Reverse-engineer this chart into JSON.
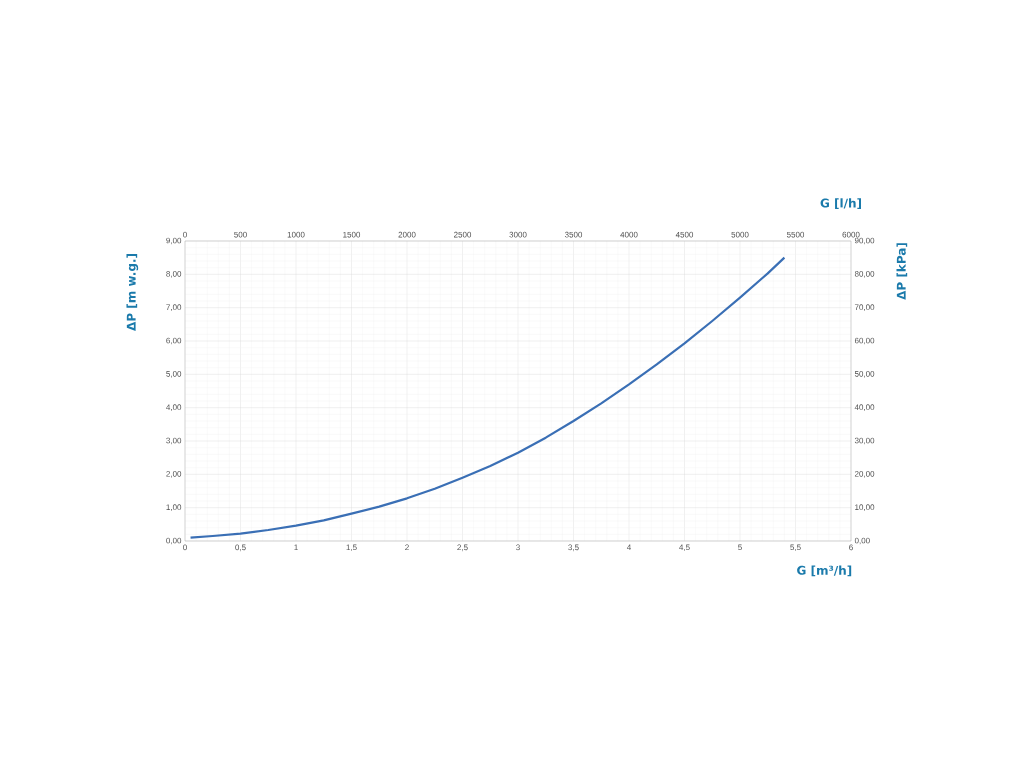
{
  "chart_data": {
    "type": "line",
    "xlabel": "G [m³/h]",
    "ylabel": "ΔP [m w.g.]",
    "x2label": "G [l/h]",
    "y2label": "ΔP [kPa]",
    "x": [
      0.05,
      0.25,
      0.5,
      0.75,
      1,
      1.25,
      1.5,
      1.75,
      2,
      2.25,
      2.5,
      2.75,
      3,
      3.25,
      3.5,
      3.75,
      4,
      4.25,
      4.5,
      4.75,
      5,
      5.25,
      5.4
    ],
    "series": [
      {
        "color": "#3a6fb5",
        "values": [
          0.1,
          0.15,
          0.22,
          0.33,
          0.46,
          0.62,
          0.82,
          1.03,
          1.28,
          1.57,
          1.9,
          2.25,
          2.65,
          3.1,
          3.6,
          4.13,
          4.7,
          5.3,
          5.93,
          6.6,
          7.3,
          8.03,
          8.5
        ]
      }
    ],
    "xlim": [
      0,
      6
    ],
    "xticks": [
      0,
      {
        "value": 0.5,
        "label": "0,5"
      },
      1,
      {
        "value": 1.5,
        "label": "1,5"
      },
      2,
      {
        "value": 2.5,
        "label": "2,5"
      },
      3,
      {
        "value": 3.5,
        "label": "3,5"
      },
      4,
      {
        "value": 4.5,
        "label": "4,5"
      },
      5,
      {
        "value": 5.5,
        "label": "5,5"
      },
      6
    ],
    "ylim": [
      0,
      9
    ],
    "yticks": [
      {
        "value": 0,
        "label": "0,00"
      },
      {
        "value": 1,
        "label": "1,00"
      },
      {
        "value": 2,
        "label": "2,00"
      },
      {
        "value": 3,
        "label": "3,00"
      },
      {
        "value": 4,
        "label": "4,00"
      },
      {
        "value": 5,
        "label": "5,00"
      },
      {
        "value": 6,
        "label": "6,00"
      },
      {
        "value": 7,
        "label": "7,00"
      },
      {
        "value": 8,
        "label": "8,00"
      },
      {
        "value": 9,
        "label": "9,00"
      }
    ],
    "x2lim": [
      0,
      6000
    ],
    "x2ticks": [
      0,
      500,
      1000,
      1500,
      2000,
      2500,
      3000,
      3500,
      4000,
      4500,
      5000,
      5500,
      6000
    ],
    "y2lim": [
      0,
      90
    ],
    "y2ticks": [
      {
        "value": 0,
        "label": "0,00"
      },
      {
        "value": 10,
        "label": "10,00"
      },
      {
        "value": 20,
        "label": "20,00"
      },
      {
        "value": 30,
        "label": "30,00"
      },
      {
        "value": 40,
        "label": "40,00"
      },
      {
        "value": 50,
        "label": "50,00"
      },
      {
        "value": 60,
        "label": "60,00"
      },
      {
        "value": 70,
        "label": "70,00"
      },
      {
        "value": 80,
        "label": "80,00"
      },
      {
        "value": 90,
        "label": "90,00"
      }
    ],
    "grid": true
  }
}
